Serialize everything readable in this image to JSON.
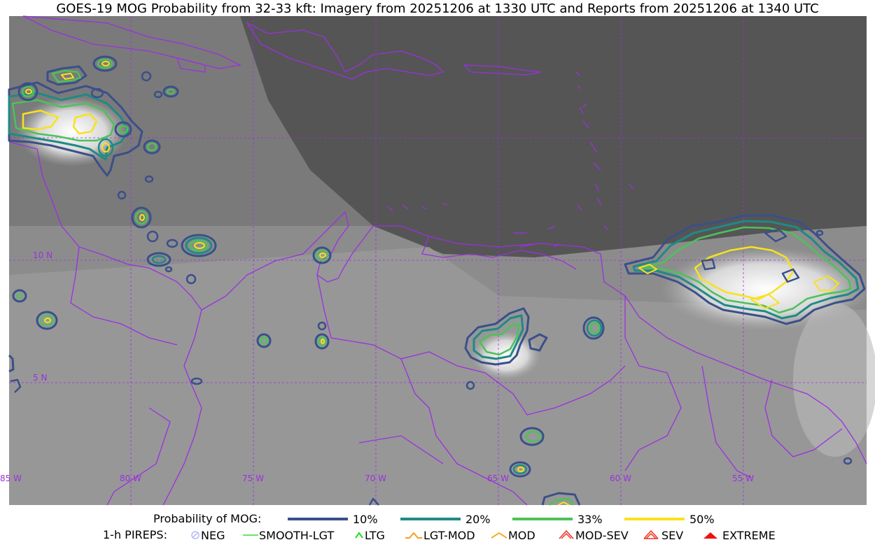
{
  "title": "GOES-19 MOG Probability from 32-33 kft: Imagery from 20251206 at 1330 UTC and Reports from 20251206 at 1340 UTC",
  "map": {
    "lat_labels": [
      "10 N",
      "5 N"
    ],
    "lon_labels": [
      "85 W",
      "80 W",
      "75 W",
      "70 W",
      "65 W",
      "60 W",
      "55 W"
    ],
    "border_color": "#9b30e0",
    "grid_color": "#9b30e0"
  },
  "legend_prob": {
    "label": "Probability of MOG:",
    "items": [
      {
        "label": "10%",
        "color": "#3b4f8a"
      },
      {
        "label": "20%",
        "color": "#1f8a84"
      },
      {
        "label": "33%",
        "color": "#4cc25a"
      },
      {
        "label": "50%",
        "color": "#f7e21e"
      }
    ]
  },
  "legend_pireps": {
    "label": "1-h PIREPS:",
    "items": [
      {
        "label": "NEG",
        "color": "#b8b8ff",
        "icon": "neg-marker-icon"
      },
      {
        "label": "SMOOTH-LGT",
        "color": "#33dd33",
        "icon": "smooth-lgt-marker-icon"
      },
      {
        "label": "LTG",
        "color": "#22dd22",
        "icon": "ltg-marker-icon"
      },
      {
        "label": "LGT-MOD",
        "color": "#f2a11e",
        "icon": "lgt-mod-marker-icon"
      },
      {
        "label": "MOD",
        "color": "#f2b21e",
        "icon": "mod-marker-icon"
      },
      {
        "label": "MOD-SEV",
        "color": "#ee3322",
        "icon": "mod-sev-marker-icon"
      },
      {
        "label": "SEV",
        "color": "#ee3322",
        "icon": "sev-marker-icon"
      },
      {
        "label": "EXTREME",
        "color": "#ee1111",
        "icon": "extreme-marker-icon"
      }
    ]
  }
}
